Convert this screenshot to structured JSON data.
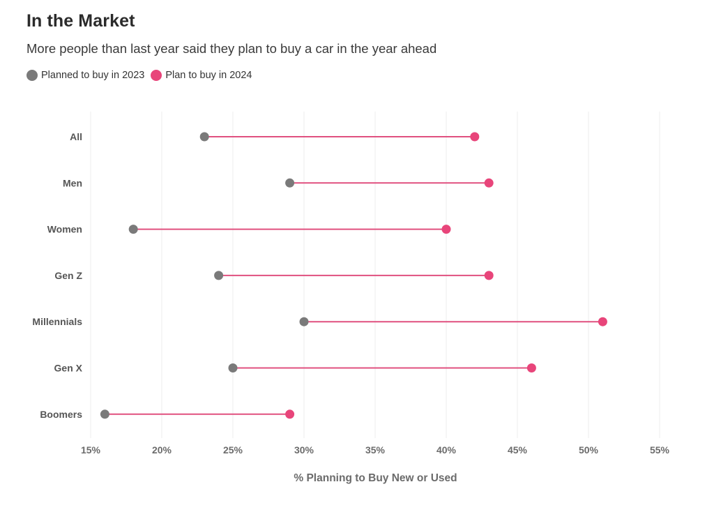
{
  "chart_data": {
    "type": "dot-range",
    "title": "In the Market",
    "subtitle": "More people than last year said they plan to buy a car in the year ahead",
    "xlabel": "% Planning to Buy New or Used",
    "xlim": [
      15,
      55
    ],
    "xticks": [
      15,
      20,
      25,
      30,
      35,
      40,
      45,
      50,
      55
    ],
    "xtick_labels": [
      "15%",
      "20%",
      "25%",
      "30%",
      "35%",
      "40%",
      "45%",
      "50%",
      "55%"
    ],
    "grid": "vertical",
    "legend_position": "top-left",
    "categories": [
      "All",
      "Men",
      "Women",
      "Gen Z",
      "Millennials",
      "Gen X",
      "Boomers"
    ],
    "series": [
      {
        "name": "Planned to buy in 2023",
        "color": "#7a7a7a",
        "values": [
          23,
          29,
          18,
          24,
          30,
          25,
          16
        ]
      },
      {
        "name": "Plan to buy in 2024",
        "color": "#e8457a",
        "values": [
          42,
          43,
          40,
          43,
          51,
          46,
          29
        ]
      }
    ],
    "connector_color": "#e0507f"
  }
}
